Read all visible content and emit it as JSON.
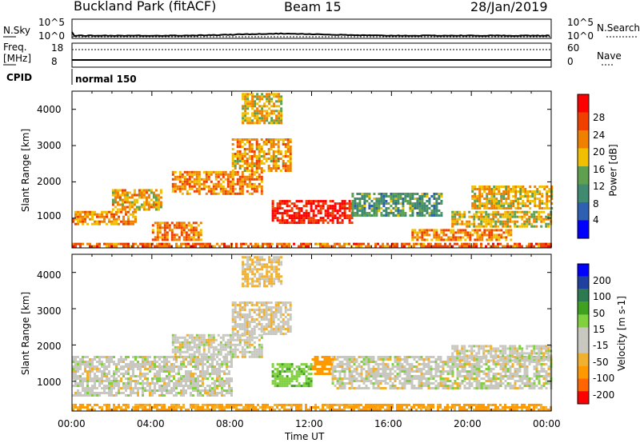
{
  "header": {
    "title": "Buckland Park (fitACF)",
    "beam": "Beam 15",
    "date": "28/Jan/2019"
  },
  "strip_labels": {
    "nsky": "N.Sky",
    "nsky_top": "10^5",
    "nsky_bottom": "10^0",
    "nsearch": "N.Search",
    "nsearch_top": "10^5",
    "nsearch_bottom": "10^0",
    "freq_line1": "Freq.",
    "freq_line2": "[MHz]",
    "freq_top": "18",
    "freq_bottom": "8",
    "nave": "Nave",
    "nave_top": "60",
    "nave_bottom": "0",
    "cpid": "CPID",
    "cpid_value": "normal 150"
  },
  "colors": {
    "power": [
      "#0000ff",
      "#2e5fb0",
      "#3f8a70",
      "#5fa050",
      "#f0c000",
      "#f08000",
      "#f04000",
      "#ff0000"
    ],
    "velocity": [
      "#ff0000",
      "#ff6600",
      "#ff9900",
      "#f0b030",
      "#c8c8c0",
      "#c8c8c0",
      "#80d040",
      "#40a020",
      "#2e7a50",
      "#2040a0",
      "#0000ff"
    ]
  },
  "chart_data": [
    {
      "type": "heatmap",
      "panel": "power",
      "ylabel": "Slant Range [km]",
      "yticks": [
        "1000",
        "2000",
        "3000",
        "4000"
      ],
      "ylim": [
        180,
        4500
      ],
      "xlim": [
        0,
        24
      ],
      "colorbar_label": "Power [dB]",
      "colorbar_ticks": [
        "4",
        "8",
        "12",
        "16",
        "20",
        "24",
        "28"
      ],
      "colorbar_range": [
        0,
        32
      ],
      "regions": [
        {
          "t0": 0.0,
          "t1": 24.0,
          "r0": 200,
          "r1": 320,
          "v": 24
        },
        {
          "t0": 0.0,
          "t1": 3.2,
          "r0": 850,
          "r1": 1200,
          "v": 22
        },
        {
          "t0": 2.0,
          "t1": 4.5,
          "r0": 1250,
          "r1": 1800,
          "v": 20
        },
        {
          "t0": 4.0,
          "t1": 6.5,
          "r0": 400,
          "r1": 900,
          "v": 23
        },
        {
          "t0": 5.0,
          "t1": 9.5,
          "r0": 1700,
          "r1": 2300,
          "v": 22
        },
        {
          "t0": 8.0,
          "t1": 11.0,
          "r0": 2300,
          "r1": 3200,
          "v": 20
        },
        {
          "t0": 8.5,
          "t1": 10.5,
          "r0": 3600,
          "r1": 4450,
          "v": 19
        },
        {
          "t0": 10.0,
          "t1": 14.0,
          "r0": 900,
          "r1": 1500,
          "v": 29
        },
        {
          "t0": 14.0,
          "t1": 18.5,
          "r0": 1100,
          "r1": 1700,
          "v": 12
        },
        {
          "t0": 17.0,
          "t1": 22.0,
          "r0": 400,
          "r1": 700,
          "v": 22
        },
        {
          "t0": 19.0,
          "t1": 24.0,
          "r0": 800,
          "r1": 1200,
          "v": 18
        },
        {
          "t0": 20.0,
          "t1": 24.0,
          "r0": 1300,
          "r1": 1900,
          "v": 19
        }
      ]
    },
    {
      "type": "heatmap",
      "panel": "velocity",
      "ylabel": "Slant Range [km]",
      "yticks": [
        "1000",
        "2000",
        "3000",
        "4000"
      ],
      "ylim": [
        180,
        4500
      ],
      "xlim": [
        0,
        24
      ],
      "xticks": [
        "00:00",
        "04:00",
        "08:00",
        "12:00",
        "16:00",
        "20:00",
        "00:00"
      ],
      "xlabel": "Time UT",
      "colorbar_label": "Velocity [m s-1]",
      "colorbar_ticks": [
        "200",
        "100",
        "50",
        "15",
        "-15",
        "-50",
        "-100",
        "-200"
      ],
      "colorbar_range": [
        -300,
        300
      ],
      "regions": [
        {
          "t0": 0.0,
          "t1": 24.0,
          "r0": 200,
          "r1": 380,
          "v": -60
        },
        {
          "t0": 0.0,
          "t1": 8.0,
          "r0": 600,
          "r1": 1700,
          "v": 0
        },
        {
          "t0": 5.0,
          "t1": 9.5,
          "r0": 1700,
          "r1": 2300,
          "v": 0
        },
        {
          "t0": 8.0,
          "t1": 11.0,
          "r0": 2300,
          "r1": 3200,
          "v": -5
        },
        {
          "t0": 8.5,
          "t1": 10.5,
          "r0": 3600,
          "r1": 4450,
          "v": -20
        },
        {
          "t0": 10.0,
          "t1": 12.0,
          "r0": 900,
          "r1": 1500,
          "v": 40
        },
        {
          "t0": 12.0,
          "t1": 13.2,
          "r0": 1200,
          "r1": 1700,
          "v": -80
        },
        {
          "t0": 13.0,
          "t1": 24.0,
          "r0": 800,
          "r1": 1700,
          "v": 0
        },
        {
          "t0": 19.0,
          "t1": 24.0,
          "r0": 1600,
          "r1": 2000,
          "v": 0
        }
      ]
    }
  ]
}
